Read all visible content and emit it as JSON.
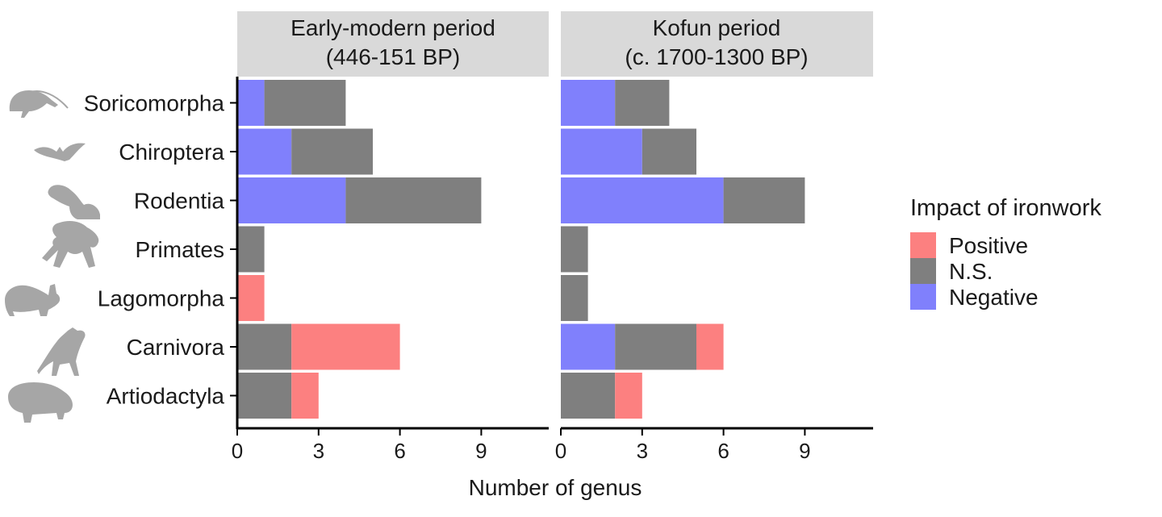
{
  "chart_data": {
    "type": "bar",
    "orientation": "horizontal",
    "stacked": true,
    "xlabel": "Number of genus",
    "xlim": [
      0,
      11.5
    ],
    "xticks": [
      0,
      3,
      6,
      9
    ],
    "categories": [
      "Soricomorpha",
      "Chiroptera",
      "Rodentia",
      "Primates",
      "Lagomorpha",
      "Carnivora",
      "Artiodactyla"
    ],
    "legend": {
      "title": "Impact of ironwork",
      "position": "right",
      "entries": [
        {
          "name": "Positive",
          "color": "#fc8080"
        },
        {
          "name": "N.S.",
          "color": "#7f7f7f"
        },
        {
          "name": "Negative",
          "color": "#8080fc"
        }
      ]
    },
    "stack_order": [
      "Negative",
      "N.S.",
      "Positive"
    ],
    "panels": [
      {
        "title_line1": "Early-modern period",
        "title_line2": "(446-151 BP)",
        "series": [
          {
            "name": "Negative",
            "values": [
              1,
              2,
              4,
              0,
              0,
              0,
              0
            ]
          },
          {
            "name": "N.S.",
            "values": [
              3,
              3,
              5,
              1,
              0,
              2,
              2
            ]
          },
          {
            "name": "Positive",
            "values": [
              0,
              0,
              0,
              0,
              1,
              4,
              1
            ]
          }
        ]
      },
      {
        "title_line1": "Kofun period",
        "title_line2": "(c. 1700-1300 BP)",
        "series": [
          {
            "name": "Negative",
            "values": [
              2,
              3,
              6,
              0,
              0,
              2,
              0
            ]
          },
          {
            "name": "N.S.",
            "values": [
              2,
              2,
              3,
              1,
              1,
              3,
              2
            ]
          },
          {
            "name": "Positive",
            "values": [
              0,
              0,
              0,
              0,
              0,
              1,
              1
            ]
          }
        ]
      }
    ]
  }
}
